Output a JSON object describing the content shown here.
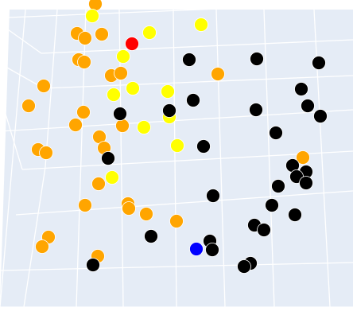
{
  "chart_data": {
    "type": "scatter",
    "projection": "3d-perspective",
    "background_color": "#e5ecf6",
    "grid_color": "#ffffff",
    "marker_outline": "#ffffff",
    "series": [
      {
        "color": "#ffa500",
        "points": [
          [
            120,
            5
          ],
          [
            97,
            42
          ],
          [
            107,
            48
          ],
          [
            128,
            43
          ],
          [
            99,
            75
          ],
          [
            106,
            78
          ],
          [
            140,
            95
          ],
          [
            152,
            92
          ],
          [
            55,
            108
          ],
          [
            274,
            93
          ],
          [
            36,
            133
          ],
          [
            105,
            141
          ],
          [
            95,
            157
          ],
          [
            154,
            158
          ],
          [
            125,
            172
          ],
          [
            131,
            186
          ],
          [
            48,
            188
          ],
          [
            58,
            192
          ],
          [
            124,
            231
          ],
          [
            107,
            258
          ],
          [
            161,
            256
          ],
          [
            162,
            262
          ],
          [
            184,
            269
          ],
          [
            222,
            278
          ],
          [
            61,
            298
          ],
          [
            53,
            310
          ],
          [
            123,
            322
          ],
          [
            381,
            198
          ]
        ]
      },
      {
        "color": "#ffff00",
        "points": [
          [
            116,
            20
          ],
          [
            188,
            41
          ],
          [
            253,
            31
          ],
          [
            155,
            71
          ],
          [
            167,
            111
          ],
          [
            143,
            119
          ],
          [
            211,
            115
          ],
          [
            213,
            147
          ],
          [
            181,
            160
          ],
          [
            223,
            183
          ],
          [
            141,
            223
          ]
        ]
      },
      {
        "color": "#000000",
        "points": [
          [
            238,
            75
          ],
          [
            323,
            74
          ],
          [
            401,
            79
          ],
          [
            379,
            112
          ],
          [
            243,
            126
          ],
          [
            151,
            143
          ],
          [
            213,
            139
          ],
          [
            322,
            138
          ],
          [
            387,
            133
          ],
          [
            403,
            146
          ],
          [
            347,
            167
          ],
          [
            256,
            184
          ],
          [
            136,
            199
          ],
          [
            368,
            208
          ],
          [
            385,
            216
          ],
          [
            373,
            222
          ],
          [
            385,
            230
          ],
          [
            350,
            234
          ],
          [
            268,
            246
          ],
          [
            342,
            258
          ],
          [
            371,
            270
          ],
          [
            320,
            283
          ],
          [
            332,
            289
          ],
          [
            190,
            297
          ],
          [
            264,
            303
          ],
          [
            267,
            314
          ],
          [
            117,
            333
          ],
          [
            315,
            331
          ],
          [
            307,
            335
          ]
        ]
      },
      {
        "color": "#ff0000",
        "points": [
          [
            166,
            55
          ]
        ]
      },
      {
        "color": "#0000ff",
        "points": [
          [
            247,
            313
          ]
        ]
      }
    ]
  }
}
